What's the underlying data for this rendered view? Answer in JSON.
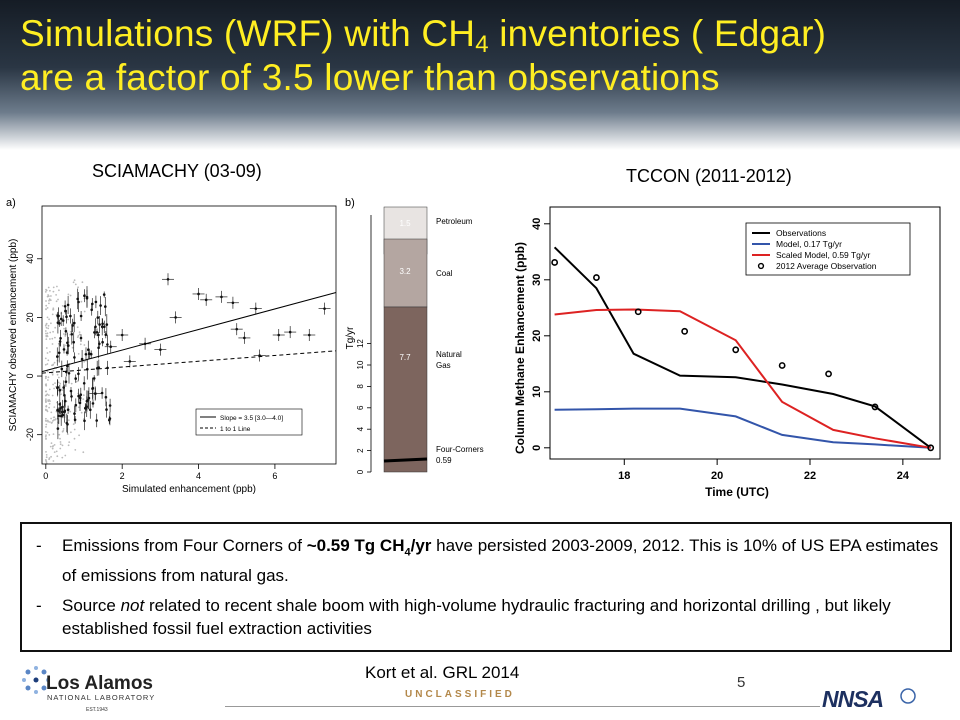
{
  "title": {
    "line1_pre": "Simulations (WRF) with CH",
    "line1_sub": "4",
    "line1_post": " inventories ( Edgar)",
    "line2": "are a factor of 3.5 lower than observations"
  },
  "panels": {
    "left_heading": "SCIAMACHY (03-09)",
    "right_heading": "TCCON (2011-2012)"
  },
  "figure_a": {
    "panel_label": "a)",
    "xlabel": "Simulated enhancement (ppb)",
    "ylabel": "SCIAMACHY observed enhancement (ppb)",
    "xticks": [
      "0",
      "2",
      "4",
      "6"
    ],
    "yticks": [
      "-20",
      "0",
      "20",
      "40"
    ],
    "legend": [
      "Slope = 3.5 [3.0—4.0]",
      "1 to 1 Line"
    ]
  },
  "figure_b": {
    "panel_label": "b)",
    "ylabel": "Tg/yr",
    "yticks": [
      "0",
      "2",
      "4",
      "6",
      "8",
      "10",
      "12"
    ],
    "segments": [
      {
        "name": "Petroleum",
        "value_label": "1.5",
        "color": "#e8e4e2"
      },
      {
        "name": "Coal",
        "value_label": "3.2",
        "color": "#b4a6a1"
      },
      {
        "name_line1": "Natural",
        "name_line2": "Gas",
        "value_label": "7.7",
        "color": "#7d655e"
      }
    ],
    "four_corners_line1": "Four-Corners",
    "four_corners_line2": "0.59"
  },
  "chart_data": {
    "type": "line",
    "title": "",
    "xlabel": "Time (UTC)",
    "ylabel": "Column Methane Enhancement (ppb)",
    "xlim": [
      16.4,
      24.8
    ],
    "ylim": [
      -2,
      43
    ],
    "xticks": [
      18,
      20,
      22,
      24
    ],
    "yticks": [
      0,
      10,
      20,
      30,
      40
    ],
    "legend_position": "top-right",
    "series": [
      {
        "name": "Observations",
        "style": "line",
        "color": "#000000",
        "x": [
          16.5,
          17.4,
          18.2,
          19.2,
          20.4,
          21.4,
          22.5,
          23.4,
          24.6
        ],
        "y": [
          35.8,
          28.5,
          16.8,
          12.9,
          12.6,
          11.3,
          9.6,
          7.4,
          0.0
        ]
      },
      {
        "name": "Model, 0.17 Tg/yr",
        "style": "line",
        "color": "#3355aa",
        "x": [
          16.5,
          17.4,
          18.2,
          19.2,
          20.4,
          21.4,
          22.5,
          23.4,
          24.6
        ],
        "y": [
          6.8,
          6.9,
          7.0,
          7.0,
          5.6,
          2.3,
          1.0,
          0.6,
          0.0
        ]
      },
      {
        "name": "Scaled Model, 0.59 Tg/yr",
        "style": "line",
        "color": "#dd2222",
        "x": [
          16.5,
          17.4,
          18.2,
          19.2,
          20.4,
          21.4,
          22.5,
          23.4,
          24.6
        ],
        "y": [
          23.8,
          24.6,
          24.7,
          24.4,
          19.2,
          8.2,
          3.2,
          1.7,
          0.0
        ]
      },
      {
        "name": "2012 Average Observation",
        "style": "points",
        "color": "#000000",
        "x": [
          16.5,
          17.4,
          18.3,
          19.3,
          20.4,
          21.4,
          22.4,
          23.4,
          24.6
        ],
        "y": [
          33.1,
          30.4,
          24.3,
          20.8,
          17.5,
          14.7,
          13.2,
          7.3,
          0.0
        ]
      }
    ]
  },
  "notes": [
    {
      "dash": "-",
      "pre": "Emissions from Four Corners of ",
      "bold_pre": "~0.59 Tg CH",
      "bold_sub": "4",
      "bold_post": "/yr",
      "post": " have persisted 2003-2009, 2012. This is 10% of US EPA estimates of emissions from natural gas."
    },
    {
      "dash": "-",
      "pre": "Source ",
      "italic": "not",
      "post": " related to recent shale boom with high-volume hydraulic fracturing and horizontal drilling , but likely established fossil fuel extraction activities"
    }
  ],
  "footer": {
    "citation": "Kort et al. GRL 2014",
    "classification": "UNCLASSIFIED",
    "page_number": "5",
    "lanl_name_line1": "Los Alamos",
    "lanl_name_line2": "NATIONAL LABORATORY",
    "lanl_est": "EST.1943",
    "nnsa_text": "NNSA"
  }
}
